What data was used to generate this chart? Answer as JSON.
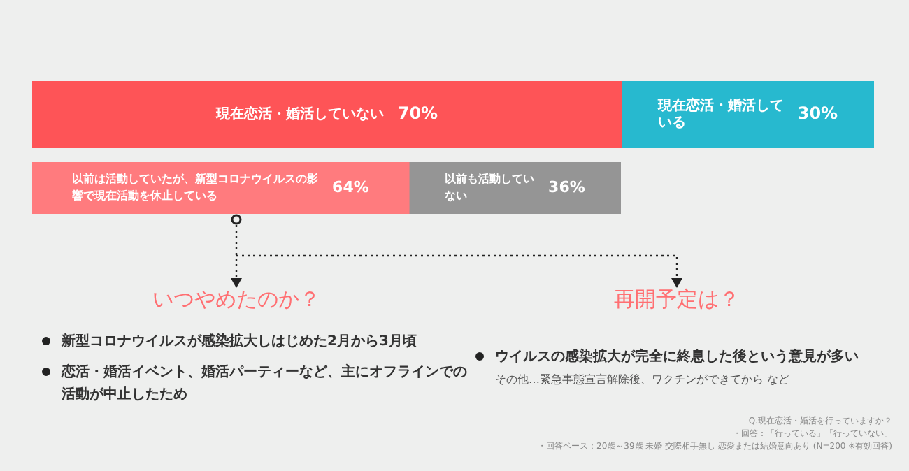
{
  "chart_data": [
    {
      "type": "bar",
      "orientation": "horizontal",
      "stacked": true,
      "legend": false,
      "tick_labels": false,
      "xlim": [
        0,
        100
      ],
      "categories": [
        null
      ],
      "series": [
        {
          "name": "現在恋活・婚活していない",
          "color": "#fe5457",
          "values": [
            70
          ],
          "value_labels": [
            "70%"
          ]
        },
        {
          "name": "現在恋活・婚活している",
          "color": "#27b9cf",
          "values": [
            30
          ],
          "value_labels": [
            "30%"
          ]
        }
      ]
    },
    {
      "type": "bar",
      "orientation": "horizontal",
      "stacked": true,
      "legend": false,
      "tick_labels": false,
      "xlim": [
        0,
        100
      ],
      "categories": [
        null
      ],
      "series": [
        {
          "name": "以前は活動していたが、新型コロナウイルスの影響で現在活動を休止している",
          "color": "#ff7b7e",
          "values": [
            64
          ],
          "value_labels": [
            "64%"
          ]
        },
        {
          "name": "以前も活動していない",
          "color": "#959595",
          "values": [
            36
          ],
          "value_labels": [
            "36%"
          ]
        }
      ],
      "annotations": [
        "いつやめたのか？",
        "新型コロナウイルスが感染拡大しはじめた2月から3月頃",
        "恋活・婚活イベント、婚活パーティーなど、主にオフラインでの活動が中止したため",
        "再開予定は？",
        "ウイルスの感染拡大が完全に終息した後という意見が多い",
        "その他…緊急事態宣言解除後、ワクチンができてから など",
        "Q.現在恋活・婚活を行っていますか？",
        "・回答：「行っている」「行っていない」",
        "・回答ベース：20歳～39歳 未婚 交際相手無し 恋愛または結婚意向あり (N=200 ※有効回答)"
      ]
    }
  ]
}
